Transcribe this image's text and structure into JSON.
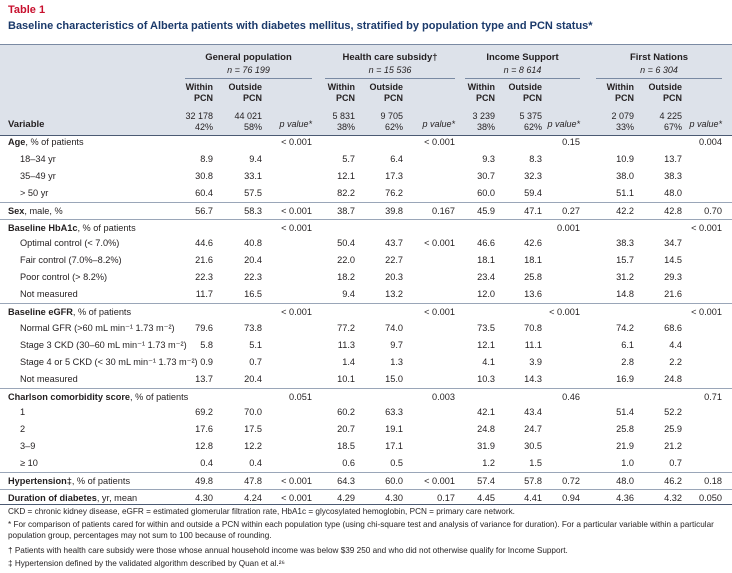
{
  "label": "Table 1",
  "title": "Baseline characteristics of Alberta patients with diabetes mellitus, stratified by population type and PCN status*",
  "variable_header": "Variable",
  "groups": [
    {
      "name": "General population",
      "n": "n = 76 199",
      "within": "Within PCN",
      "outside": "Outside PCN",
      "within_n": "32 178",
      "within_pct": "42%",
      "outside_n": "44 021",
      "outside_pct": "58%",
      "p_label": "p value*"
    },
    {
      "name": "Health care subsidy†",
      "n": "n = 15 536",
      "within": "Within PCN",
      "outside": "Outside PCN",
      "within_n": "5 831",
      "within_pct": "38%",
      "outside_n": "9 705",
      "outside_pct": "62%",
      "p_label": "p value*"
    },
    {
      "name": "Income Support",
      "n": "n = 8 614",
      "within": "Within PCN",
      "outside": "Outside PCN",
      "within_n": "3 239",
      "within_pct": "38%",
      "outside_n": "5 375",
      "outside_pct": "62%",
      "p_label": "p value*"
    },
    {
      "name": "First Nations",
      "n": "n = 6 304",
      "within": "Within PCN",
      "outside": "Outside PCN",
      "within_n": "2 079",
      "within_pct": "33%",
      "outside_n": "4 225",
      "outside_pct": "67%",
      "p_label": "p value*"
    }
  ],
  "rows": [
    {
      "label": "Age",
      "label_note": ", % of patients",
      "values": [
        null,
        null,
        "< 0.001",
        null,
        null,
        "< 0.001",
        null,
        null,
        "0.15",
        null,
        null,
        "0.004"
      ]
    },
    {
      "label": "18–34 yr",
      "values": [
        "8.9",
        "9.4",
        null,
        "5.7",
        "6.4",
        null,
        "9.3",
        "8.3",
        null,
        "10.9",
        "13.7",
        null
      ]
    },
    {
      "label": "35–49 yr",
      "values": [
        "30.8",
        "33.1",
        null,
        "12.1",
        "17.3",
        null,
        "30.7",
        "32.3",
        null,
        "38.0",
        "38.3",
        null
      ]
    },
    {
      "label": "> 50 yr",
      "values": [
        "60.4",
        "57.5",
        null,
        "82.2",
        "76.2",
        null,
        "60.0",
        "59.4",
        null,
        "51.1",
        "48.0",
        null
      ]
    },
    {
      "label": "Sex",
      "label_note": ", male, %",
      "values": [
        "56.7",
        "58.3",
        "< 0.001",
        "38.7",
        "39.8",
        "0.167",
        "45.9",
        "47.1",
        "0.27",
        "42.2",
        "42.8",
        "0.70"
      ]
    },
    {
      "label": "Baseline HbA1c",
      "label_note": ", % of patients",
      "values": [
        null,
        null,
        "< 0.001",
        null,
        null,
        null,
        null,
        null,
        "0.001",
        null,
        null,
        "< 0.001"
      ]
    },
    {
      "label": "Optimal control (< 7.0%)",
      "values": [
        "44.6",
        "40.8",
        null,
        "50.4",
        "43.7",
        "< 0.001",
        "46.6",
        "42.6",
        null,
        "38.3",
        "34.7",
        null
      ]
    },
    {
      "label": "Fair control (7.0%–8.2%)",
      "values": [
        "21.6",
        "20.4",
        null,
        "22.0",
        "22.7",
        null,
        "18.1",
        "18.1",
        null,
        "15.7",
        "14.5",
        null
      ]
    },
    {
      "label": "Poor control (> 8.2%)",
      "values": [
        "22.3",
        "22.3",
        null,
        "18.2",
        "20.3",
        null,
        "23.4",
        "25.8",
        null,
        "31.2",
        "29.3",
        null
      ]
    },
    {
      "label": "Not measured",
      "values": [
        "11.7",
        "16.5",
        null,
        "9.4",
        "13.2",
        null,
        "12.0",
        "13.6",
        null,
        "14.8",
        "21.6",
        null
      ]
    },
    {
      "label": "Baseline eGFR",
      "label_note": ", % of patients",
      "values": [
        null,
        null,
        "< 0.001",
        null,
        null,
        "< 0.001",
        null,
        null,
        "< 0.001",
        null,
        null,
        "< 0.001"
      ]
    },
    {
      "label": "Normal GFR (>60 mL min⁻¹ 1.73 m⁻²)",
      "values": [
        "79.6",
        "73.8",
        null,
        "77.2",
        "74.0",
        null,
        "73.5",
        "70.8",
        null,
        "74.2",
        "68.6",
        null
      ]
    },
    {
      "label": "Stage 3 CKD (30–60 mL min⁻¹ 1.73 m⁻²)",
      "values": [
        "5.8",
        "5.1",
        null,
        "11.3",
        "9.7",
        null,
        "12.1",
        "11.1",
        null,
        "6.1",
        "4.4",
        null
      ]
    },
    {
      "label": "Stage 4 or 5 CKD (< 30 mL min⁻¹ 1.73 m⁻²)",
      "values": [
        "0.9",
        "0.7",
        null,
        "1.4",
        "1.3",
        null,
        "4.1",
        "3.9",
        null,
        "2.8",
        "2.2",
        null
      ]
    },
    {
      "label": "Not measured",
      "values": [
        "13.7",
        "20.4",
        null,
        "10.1",
        "15.0",
        null,
        "10.3",
        "14.3",
        null,
        "16.9",
        "24.8",
        null
      ]
    },
    {
      "label": "Charlson comorbidity score",
      "label_note": ", % of patients",
      "values": [
        null,
        null,
        "0.051",
        null,
        null,
        "0.003",
        null,
        null,
        "0.46",
        null,
        null,
        "0.71"
      ]
    },
    {
      "label": "1",
      "values": [
        "69.2",
        "70.0",
        null,
        "60.2",
        "63.3",
        null,
        "42.1",
        "43.4",
        null,
        "51.4",
        "52.2",
        null
      ]
    },
    {
      "label": "2",
      "values": [
        "17.6",
        "17.5",
        null,
        "20.7",
        "19.1",
        null,
        "24.8",
        "24.7",
        null,
        "25.8",
        "25.9",
        null
      ]
    },
    {
      "label": "3–9",
      "values": [
        "12.8",
        "12.2",
        null,
        "18.5",
        "17.1",
        null,
        "31.9",
        "30.5",
        null,
        "21.9",
        "21.2",
        null
      ]
    },
    {
      "label": "≥ 10",
      "values": [
        "0.4",
        "0.4",
        null,
        "0.6",
        "0.5",
        null,
        "1.2",
        "1.5",
        null,
        "1.0",
        "0.7",
        null
      ]
    },
    {
      "label": "Hypertension‡",
      "label_note": ", % of patients",
      "values": [
        "49.8",
        "47.8",
        "< 0.001",
        "64.3",
        "60.0",
        "< 0.001",
        "57.4",
        "57.8",
        "0.72",
        "48.0",
        "46.2",
        "0.18"
      ]
    },
    {
      "label": "Duration of diabetes",
      "label_note": ", yr, mean",
      "values": [
        "4.30",
        "4.24",
        "< 0.001",
        "4.29",
        "4.30",
        "0.17",
        "4.45",
        "4.41",
        "0.94",
        "4.36",
        "4.32",
        "0.050"
      ]
    }
  ],
  "footnotes": [
    "CKD = chronic kidney disease, eGFR = estimated glomerular filtration rate, HbA1c = glycosylated hemoglobin, PCN = primary care network.",
    "* For comparison of patients cared for within and outside a PCN within each population type (using chi-square test and analysis of variance for duration). For a particular variable within a particular population group, percentages may not sum to 100 because of rounding.",
    "† Patients with health care subsidy were those whose annual household income was below $39 250 and who did not otherwise qualify for Income Support.",
    "‡ Hypertension defined by the validated algorithm described by Quan et al.²⁶"
  ]
}
